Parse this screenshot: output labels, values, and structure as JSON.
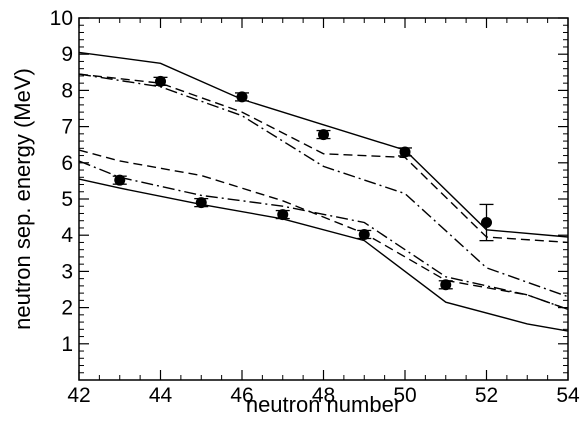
{
  "chart_data": {
    "type": "line",
    "title": "",
    "xlabel": "neutron number",
    "ylabel": "neutron sep. energy (MeV)",
    "xlim": [
      42,
      54
    ],
    "ylim": [
      0,
      10
    ],
    "x_ticks": [
      42,
      44,
      46,
      48,
      50,
      52,
      54
    ],
    "x_tick_labels": [
      "42",
      "44",
      "46",
      "48",
      "50",
      "52",
      "54"
    ],
    "y_ticks": [
      1,
      2,
      3,
      4,
      5,
      6,
      7,
      8,
      9,
      10
    ],
    "y_tick_labels": [
      "1",
      "2",
      "3",
      "4",
      "5",
      "6",
      "7",
      "8",
      "9",
      "10"
    ],
    "grid": false,
    "legend": "none",
    "series": [
      {
        "style": "solid",
        "x": [
          42,
          44,
          46,
          48,
          50,
          52,
          54
        ],
        "y": [
          9.05,
          8.75,
          7.75,
          7.05,
          6.35,
          4.15,
          3.95
        ]
      },
      {
        "style": "dashed",
        "x": [
          42,
          44,
          46,
          48,
          50,
          52,
          54
        ],
        "y": [
          8.45,
          8.2,
          7.4,
          6.25,
          6.15,
          3.95,
          3.8
        ]
      },
      {
        "style": "dashdot",
        "x": [
          42,
          44,
          46,
          48,
          50,
          52,
          54
        ],
        "y": [
          8.45,
          8.1,
          7.3,
          5.9,
          5.15,
          3.1,
          2.3
        ]
      },
      {
        "style": "solid",
        "x": [
          42,
          43,
          45,
          47,
          49,
          51,
          53,
          54
        ],
        "y": [
          5.55,
          5.3,
          4.85,
          4.45,
          3.85,
          2.15,
          1.55,
          1.35
        ]
      },
      {
        "style": "dashed",
        "x": [
          42,
          43,
          45,
          47,
          49,
          51,
          53,
          54
        ],
        "y": [
          6.35,
          6.05,
          5.65,
          4.95,
          4.05,
          2.75,
          2.35,
          1.95
        ]
      },
      {
        "style": "dashdot",
        "x": [
          42,
          43,
          45,
          47,
          49,
          51,
          53,
          54
        ],
        "y": [
          6.05,
          5.6,
          5.1,
          4.8,
          4.35,
          2.85,
          2.35,
          1.95
        ]
      }
    ],
    "points": [
      {
        "x": 43,
        "y": 5.52,
        "err": 0
      },
      {
        "x": 44,
        "y": 8.25,
        "err": 0
      },
      {
        "x": 45,
        "y": 4.9,
        "err": 0
      },
      {
        "x": 46,
        "y": 7.82,
        "err": 0
      },
      {
        "x": 47,
        "y": 4.57,
        "err": 0
      },
      {
        "x": 48,
        "y": 6.78,
        "err": 0
      },
      {
        "x": 49,
        "y": 4.02,
        "err": 0
      },
      {
        "x": 50,
        "y": 6.3,
        "err": 0
      },
      {
        "x": 51,
        "y": 2.63,
        "err": 0
      },
      {
        "x": 52,
        "y": 4.35,
        "err": 0.5
      }
    ]
  }
}
